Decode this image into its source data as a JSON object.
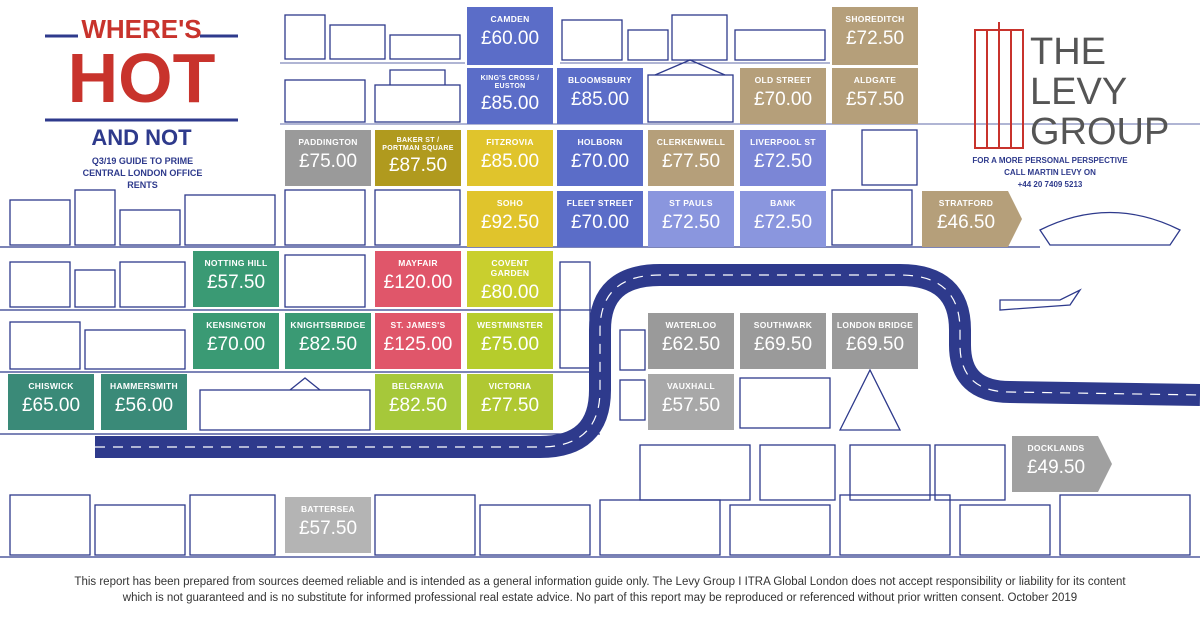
{
  "header": {
    "title_line1": "WHERE'S",
    "title_line2": "HOT",
    "title_line3": "AND NOT",
    "subtitle": "Q3/19 GUIDE TO PRIME CENTRAL LONDON OFFICE RENTS"
  },
  "brand": {
    "line1": "THE",
    "line2": "LEVY",
    "line3": "GROUP",
    "contact_line1": "FOR A MORE PERSONAL PERSPECTIVE",
    "contact_line2": "CALL MARTIN LEVY ON",
    "phone": "+44 20 7409 5213"
  },
  "tiles": [
    {
      "name": "CAMDEN",
      "price": "£60.00"
    },
    {
      "name": "SHOREDITCH",
      "price": "£72.50"
    },
    {
      "name": "KING'S CROSS / EUSTON",
      "price": "£85.00"
    },
    {
      "name": "BLOOMSBURY",
      "price": "£85.00"
    },
    {
      "name": "OLD STREET",
      "price": "£70.00"
    },
    {
      "name": "ALDGATE",
      "price": "£57.50"
    },
    {
      "name": "PADDINGTON",
      "price": "£75.00"
    },
    {
      "name": "BAKER ST / PORTMAN SQUARE",
      "price": "£87.50"
    },
    {
      "name": "FITZROVIA",
      "price": "£85.00"
    },
    {
      "name": "HOLBORN",
      "price": "£70.00"
    },
    {
      "name": "CLERKENWELL",
      "price": "£77.50"
    },
    {
      "name": "LIVERPOOL ST",
      "price": "£72.50"
    },
    {
      "name": "SOHO",
      "price": "£92.50"
    },
    {
      "name": "FLEET STREET",
      "price": "£70.00"
    },
    {
      "name": "ST PAULS",
      "price": "£72.50"
    },
    {
      "name": "BANK",
      "price": "£72.50"
    },
    {
      "name": "STRATFORD",
      "price": "£46.50"
    },
    {
      "name": "NOTTING HILL",
      "price": "£57.50"
    },
    {
      "name": "MAYFAIR",
      "price": "£120.00"
    },
    {
      "name": "COVENT GARDEN",
      "price": "£80.00"
    },
    {
      "name": "KENSINGTON",
      "price": "£70.00"
    },
    {
      "name": "KNIGHTSBRIDGE",
      "price": "£82.50"
    },
    {
      "name": "ST. JAMES'S",
      "price": "£125.00"
    },
    {
      "name": "WESTMINSTER",
      "price": "£75.00"
    },
    {
      "name": "WATERLOO",
      "price": "£62.50"
    },
    {
      "name": "SOUTHWARK",
      "price": "£69.50"
    },
    {
      "name": "LONDON BRIDGE",
      "price": "£69.50"
    },
    {
      "name": "CHISWICK",
      "price": "£65.00"
    },
    {
      "name": "HAMMERSMITH",
      "price": "£56.00"
    },
    {
      "name": "BELGRAVIA",
      "price": "£82.50"
    },
    {
      "name": "VICTORIA",
      "price": "£77.50"
    },
    {
      "name": "VAUXHALL",
      "price": "£57.50"
    },
    {
      "name": "DOCKLANDS",
      "price": "£49.50"
    },
    {
      "name": "BATTERSEA",
      "price": "£57.50"
    }
  ],
  "footer": {
    "line1": "This report has been prepared from sources deemed reliable and is intended as a general information guide only.  The Levy Group I ITRA Global London does not accept responsibility or liability for its content",
    "line2": "which is not guaranteed and is no substitute for informed professional real estate advice.  No part of this report may be reproduced or referenced without prior written consent.  October 2019"
  }
}
